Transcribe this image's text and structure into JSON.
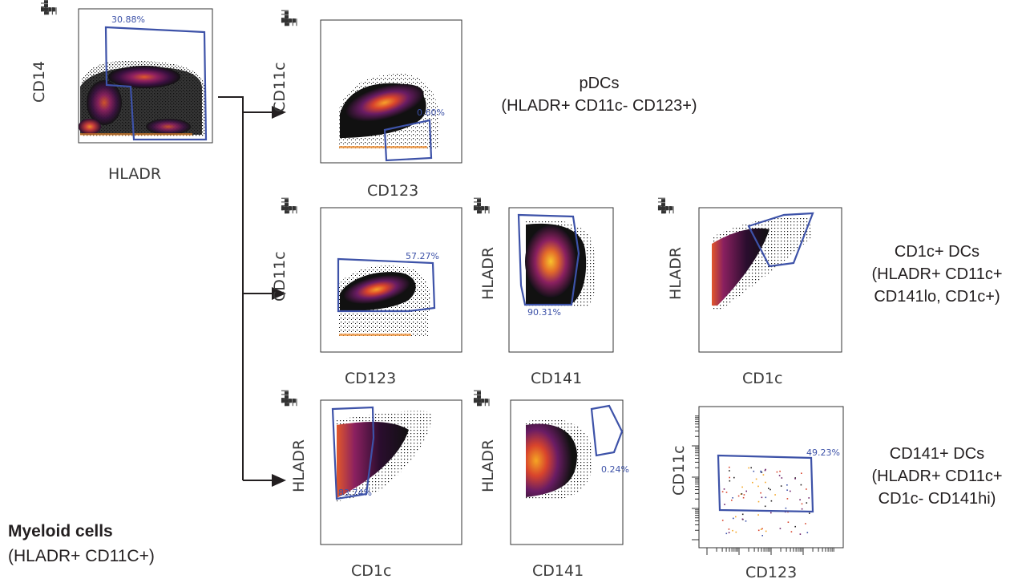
{
  "panels": [
    {
      "id": "p0",
      "xlabel": "HLADR",
      "ylabel": "CD14",
      "gate_pct": "30.88%",
      "style": "dense"
    },
    {
      "id": "p1",
      "xlabel": "CD123",
      "ylabel": "CD11c",
      "gate_pct": "0.60%",
      "style": "dense"
    },
    {
      "id": "p2",
      "xlabel": "CD123",
      "ylabel": "CD11c",
      "gate_pct": "57.27%",
      "style": "dense"
    },
    {
      "id": "p3",
      "xlabel": "CD141",
      "ylabel": "HLADR",
      "gate_pct": "90.31%",
      "style": "dense"
    },
    {
      "id": "p4",
      "xlabel": "CD1c",
      "ylabel": "HLADR",
      "gate_pct": "",
      "style": "dense"
    },
    {
      "id": "p5",
      "xlabel": "CD1c",
      "ylabel": "HLADR",
      "gate_pct": "83.74%",
      "style": "dense"
    },
    {
      "id": "p6",
      "xlabel": "CD141",
      "ylabel": "HLADR",
      "gate_pct": "0.24%",
      "style": "dense"
    },
    {
      "id": "p7",
      "xlabel": "CD123",
      "ylabel": "CD11c",
      "gate_pct": "49.23%",
      "style": "sparse"
    }
  ],
  "populations": {
    "pdc": {
      "line1": "pDCs",
      "line2": "(HLADR+ CD11c- CD123+)"
    },
    "cd1c": {
      "line1": "CD1c+ DCs",
      "line2": "(HLADR+ CD11c+",
      "line3": "CD141lo, CD1c+)"
    },
    "cd141": {
      "line1": "CD141+ DCs",
      "line2": "(HLADR+ CD11c+",
      "line3": "CD1c- CD141hi)"
    }
  },
  "legend": {
    "title": "Myeloid cells",
    "subtitle": "(HLADR+ CD11C+)"
  },
  "colors": {
    "gate": "#3d52a8",
    "ink": "#231f20",
    "hot": "#f5a623",
    "warm": "#d8442c",
    "mid": "#6a1c64",
    "cool": "#2b0f3a"
  }
}
